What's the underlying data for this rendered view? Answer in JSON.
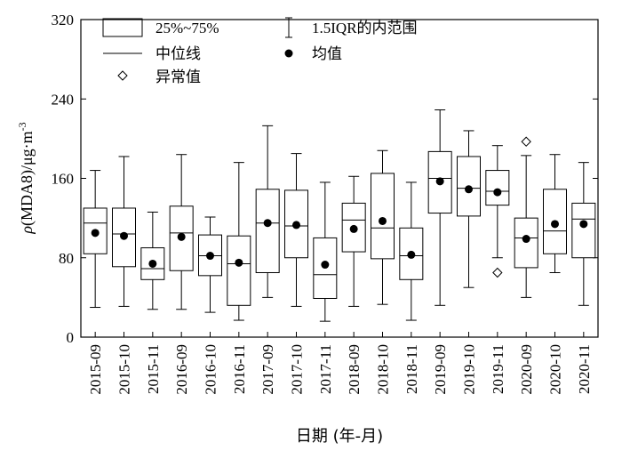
{
  "chart_data": {
    "type": "box",
    "title": "",
    "xlabel": "日期 (年-月)",
    "ylabel_text": "ρ(MDA8)/μg·m",
    "ylabel_sup": "-3",
    "ylim": [
      0,
      320
    ],
    "yticks": [
      "0",
      "80",
      "160",
      "240",
      "320"
    ],
    "grid": false,
    "legend_position": "top",
    "legend": {
      "box": "25%~75%",
      "whisker": "1.5IQR的内范围",
      "median": "中位线",
      "mean": "均值",
      "outlier": "异常值"
    },
    "categories": [
      "2015-09",
      "2015-10",
      "2015-11",
      "2016-09",
      "2016-10",
      "2016-11",
      "2017-09",
      "2017-10",
      "2017-11",
      "2018-09",
      "2018-10",
      "2018-11",
      "2019-09",
      "2019-10",
      "2019-11",
      "2020-09",
      "2020-10",
      "2020-11"
    ],
    "boxes": [
      {
        "min": 30,
        "q1": 84,
        "median": 115,
        "q3": 130,
        "max": 168,
        "mean": 105,
        "outliers": []
      },
      {
        "min": 31,
        "q1": 71,
        "median": 104,
        "q3": 130,
        "max": 182,
        "mean": 102,
        "outliers": []
      },
      {
        "min": 28,
        "q1": 58,
        "median": 69,
        "q3": 90,
        "max": 126,
        "mean": 74,
        "outliers": []
      },
      {
        "min": 28,
        "q1": 67,
        "median": 105,
        "q3": 132,
        "max": 184,
        "mean": 101,
        "outliers": []
      },
      {
        "min": 25,
        "q1": 62,
        "median": 82,
        "q3": 103,
        "max": 121,
        "mean": 82,
        "outliers": []
      },
      {
        "min": 17,
        "q1": 32,
        "median": 74,
        "q3": 102,
        "max": 176,
        "mean": 75,
        "outliers": []
      },
      {
        "min": 40,
        "q1": 65,
        "median": 115,
        "q3": 149,
        "max": 213,
        "mean": 115,
        "outliers": []
      },
      {
        "min": 31,
        "q1": 80,
        "median": 112,
        "q3": 148,
        "max": 185,
        "mean": 113,
        "outliers": []
      },
      {
        "min": 16,
        "q1": 39,
        "median": 63,
        "q3": 100,
        "max": 156,
        "mean": 73,
        "outliers": []
      },
      {
        "min": 31,
        "q1": 86,
        "median": 118,
        "q3": 135,
        "max": 162,
        "mean": 109,
        "outliers": []
      },
      {
        "min": 33,
        "q1": 79,
        "median": 110,
        "q3": 165,
        "max": 188,
        "mean": 117,
        "outliers": []
      },
      {
        "min": 17,
        "q1": 58,
        "median": 82,
        "q3": 110,
        "max": 156,
        "mean": 83,
        "outliers": []
      },
      {
        "min": 32,
        "q1": 125,
        "median": 160,
        "q3": 187,
        "max": 229,
        "mean": 157,
        "outliers": []
      },
      {
        "min": 50,
        "q1": 122,
        "median": 150,
        "q3": 182,
        "max": 208,
        "mean": 149,
        "outliers": []
      },
      {
        "min": 80,
        "q1": 133,
        "median": 147,
        "q3": 168,
        "max": 193,
        "mean": 146,
        "outliers": [
          65
        ]
      },
      {
        "min": 40,
        "q1": 70,
        "median": 100,
        "q3": 120,
        "max": 183,
        "mean": 99,
        "outliers": [
          197
        ]
      },
      {
        "min": 65,
        "q1": 84,
        "median": 107,
        "q3": 149,
        "max": 184,
        "mean": 114,
        "outliers": []
      },
      {
        "min": 32,
        "q1": 80,
        "median": 119,
        "q3": 135,
        "max": 176,
        "mean": 114,
        "outliers": []
      }
    ]
  }
}
